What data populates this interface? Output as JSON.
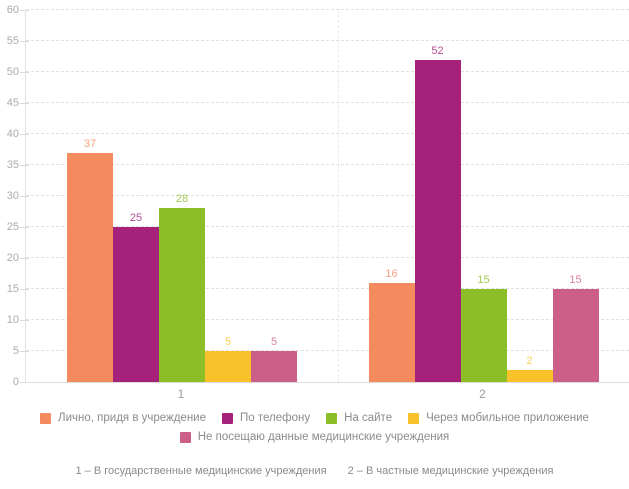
{
  "chart_data": {
    "type": "bar",
    "title": "",
    "xlabel": "",
    "ylabel": "",
    "categories": [
      "1",
      "2"
    ],
    "series": [
      {
        "name": "Лично, придя в учреждение",
        "color": "#F48B5E",
        "values": [
          37,
          16
        ]
      },
      {
        "name": "По телефону",
        "color": "#A5217A",
        "values": [
          25,
          52
        ]
      },
      {
        "name": "На сайте",
        "color": "#8CBE28",
        "values": [
          28,
          15
        ]
      },
      {
        "name": "Через мобильное приложение",
        "color": "#F9C22B",
        "values": [
          5,
          2
        ]
      },
      {
        "name": "Не посещаю данные медицинские учреждения",
        "color": "#CC5F88",
        "values": [
          5,
          15
        ]
      }
    ],
    "ylim": [
      0,
      60
    ],
    "yticks": [
      0,
      5,
      10,
      15,
      20,
      25,
      30,
      35,
      40,
      45,
      50,
      55,
      60
    ],
    "grid": true,
    "grid_style": "dashed",
    "bar_value_labels": true,
    "legend_position": "bottom",
    "legend_rows": [
      [
        0,
        1,
        2,
        3
      ],
      [
        4
      ]
    ],
    "axis_color": "#E2E2E2",
    "tick_label_color": "#ABABAB",
    "legend_text_color": "#8B8B8B"
  },
  "footnote": {
    "item1": "1 – В государственные медицинские учреждения",
    "item2": "2 – В частные медицинские учреждения"
  }
}
